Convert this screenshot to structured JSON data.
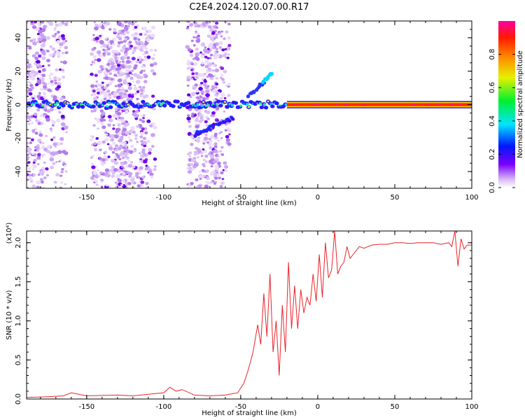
{
  "title": "C2E4.2024.120.07.00.R17",
  "colors": {
    "snr_line": "#e8232a",
    "axis": "#000000"
  },
  "chart_data": [
    {
      "type": "heatmap",
      "title": "C2E4.2024.120.07.00.R17",
      "xlabel": "Height of straight line (km)",
      "ylabel": "Frequency (Hz)",
      "xlim": [
        -189,
        100
      ],
      "ylim": [
        -50,
        50
      ],
      "x_ticks": [
        -150,
        -100,
        -50,
        0,
        50,
        100
      ],
      "y_ticks": [
        -40,
        -20,
        0,
        20,
        40
      ],
      "colorbar": {
        "label": "Normalized spectral amplitude",
        "range": [
          0,
          1
        ],
        "ticks": [
          "0.0",
          "0.2",
          "0.4",
          "0.6",
          "0.8"
        ],
        "colormap": "rainbow (white, violet, blue, cyan, green, yellow, orange, red, magenta)"
      },
      "features": [
        {
          "name": "main frequency band",
          "x_range": [
            -189,
            100
          ],
          "frequency_hz": 0,
          "amplitude": "0.2 to 0.4 below -20 km, ~0.85 above -20 km"
        },
        {
          "name": "scattered speckle columns",
          "x_centers": [
            -183,
            -170,
            -135,
            -120,
            -75
          ],
          "amplitude": "0.05 to 0.15"
        },
        {
          "name": "diagonal streak",
          "x_range": [
            -80,
            -55
          ],
          "frequency_hz_range": [
            -18,
            -8
          ]
        },
        {
          "name": "rising streak",
          "x_range": [
            -45,
            -29
          ],
          "frequency_hz_range": [
            5,
            19
          ]
        }
      ],
      "grid": false
    },
    {
      "type": "line",
      "xlabel": "Height of straight line (km)",
      "ylabel": "SNR (10 * v/v)",
      "y_multiplier": "(x10⁴)",
      "xlim": [
        -189,
        100
      ],
      "ylim": [
        0,
        2.15
      ],
      "x_ticks": [
        -150,
        -100,
        -50,
        0,
        50,
        100
      ],
      "y_ticks": [
        "0.0",
        "0.5",
        "1.0",
        "1.5",
        "2.0"
      ],
      "series": [
        {
          "x": [
            -189,
            -175,
            -165,
            -160,
            -150,
            -130,
            -120,
            -110,
            -100,
            -96,
            -92,
            -88,
            -80,
            -70,
            -60,
            -52,
            -48,
            -45,
            -42,
            -39,
            -37,
            -35,
            -33,
            -31,
            -29,
            -27,
            -25,
            -23,
            -21,
            -19,
            -17,
            -15,
            -13,
            -11,
            -9,
            -7,
            -5,
            -3,
            -1,
            1,
            3,
            5,
            7,
            9,
            11,
            13,
            15,
            17,
            19,
            21,
            23,
            25,
            27,
            30,
            35,
            40,
            45,
            50,
            55,
            60,
            65,
            70,
            75,
            80,
            85,
            87,
            89,
            91,
            93,
            95,
            97,
            100
          ],
          "y": [
            0.02,
            0.03,
            0.04,
            0.08,
            0.04,
            0.05,
            0.04,
            0.06,
            0.08,
            0.15,
            0.1,
            0.12,
            0.05,
            0.04,
            0.05,
            0.08,
            0.2,
            0.38,
            0.6,
            0.95,
            0.7,
            1.35,
            0.8,
            1.6,
            0.6,
            1.0,
            0.3,
            1.2,
            0.6,
            1.75,
            0.9,
            1.45,
            0.9,
            1.4,
            1.1,
            1.3,
            1.2,
            1.6,
            1.25,
            1.85,
            1.3,
            2.0,
            1.55,
            1.65,
            2.15,
            1.6,
            1.7,
            1.75,
            1.95,
            1.8,
            1.85,
            1.9,
            1.95,
            1.93,
            1.97,
            1.98,
            1.98,
            2.0,
            2.0,
            1.99,
            2.0,
            2.0,
            2.0,
            1.98,
            2.0,
            1.95,
            2.15,
            1.7,
            2.05,
            1.92,
            1.97,
            1.97
          ]
        }
      ],
      "grid": false
    }
  ]
}
